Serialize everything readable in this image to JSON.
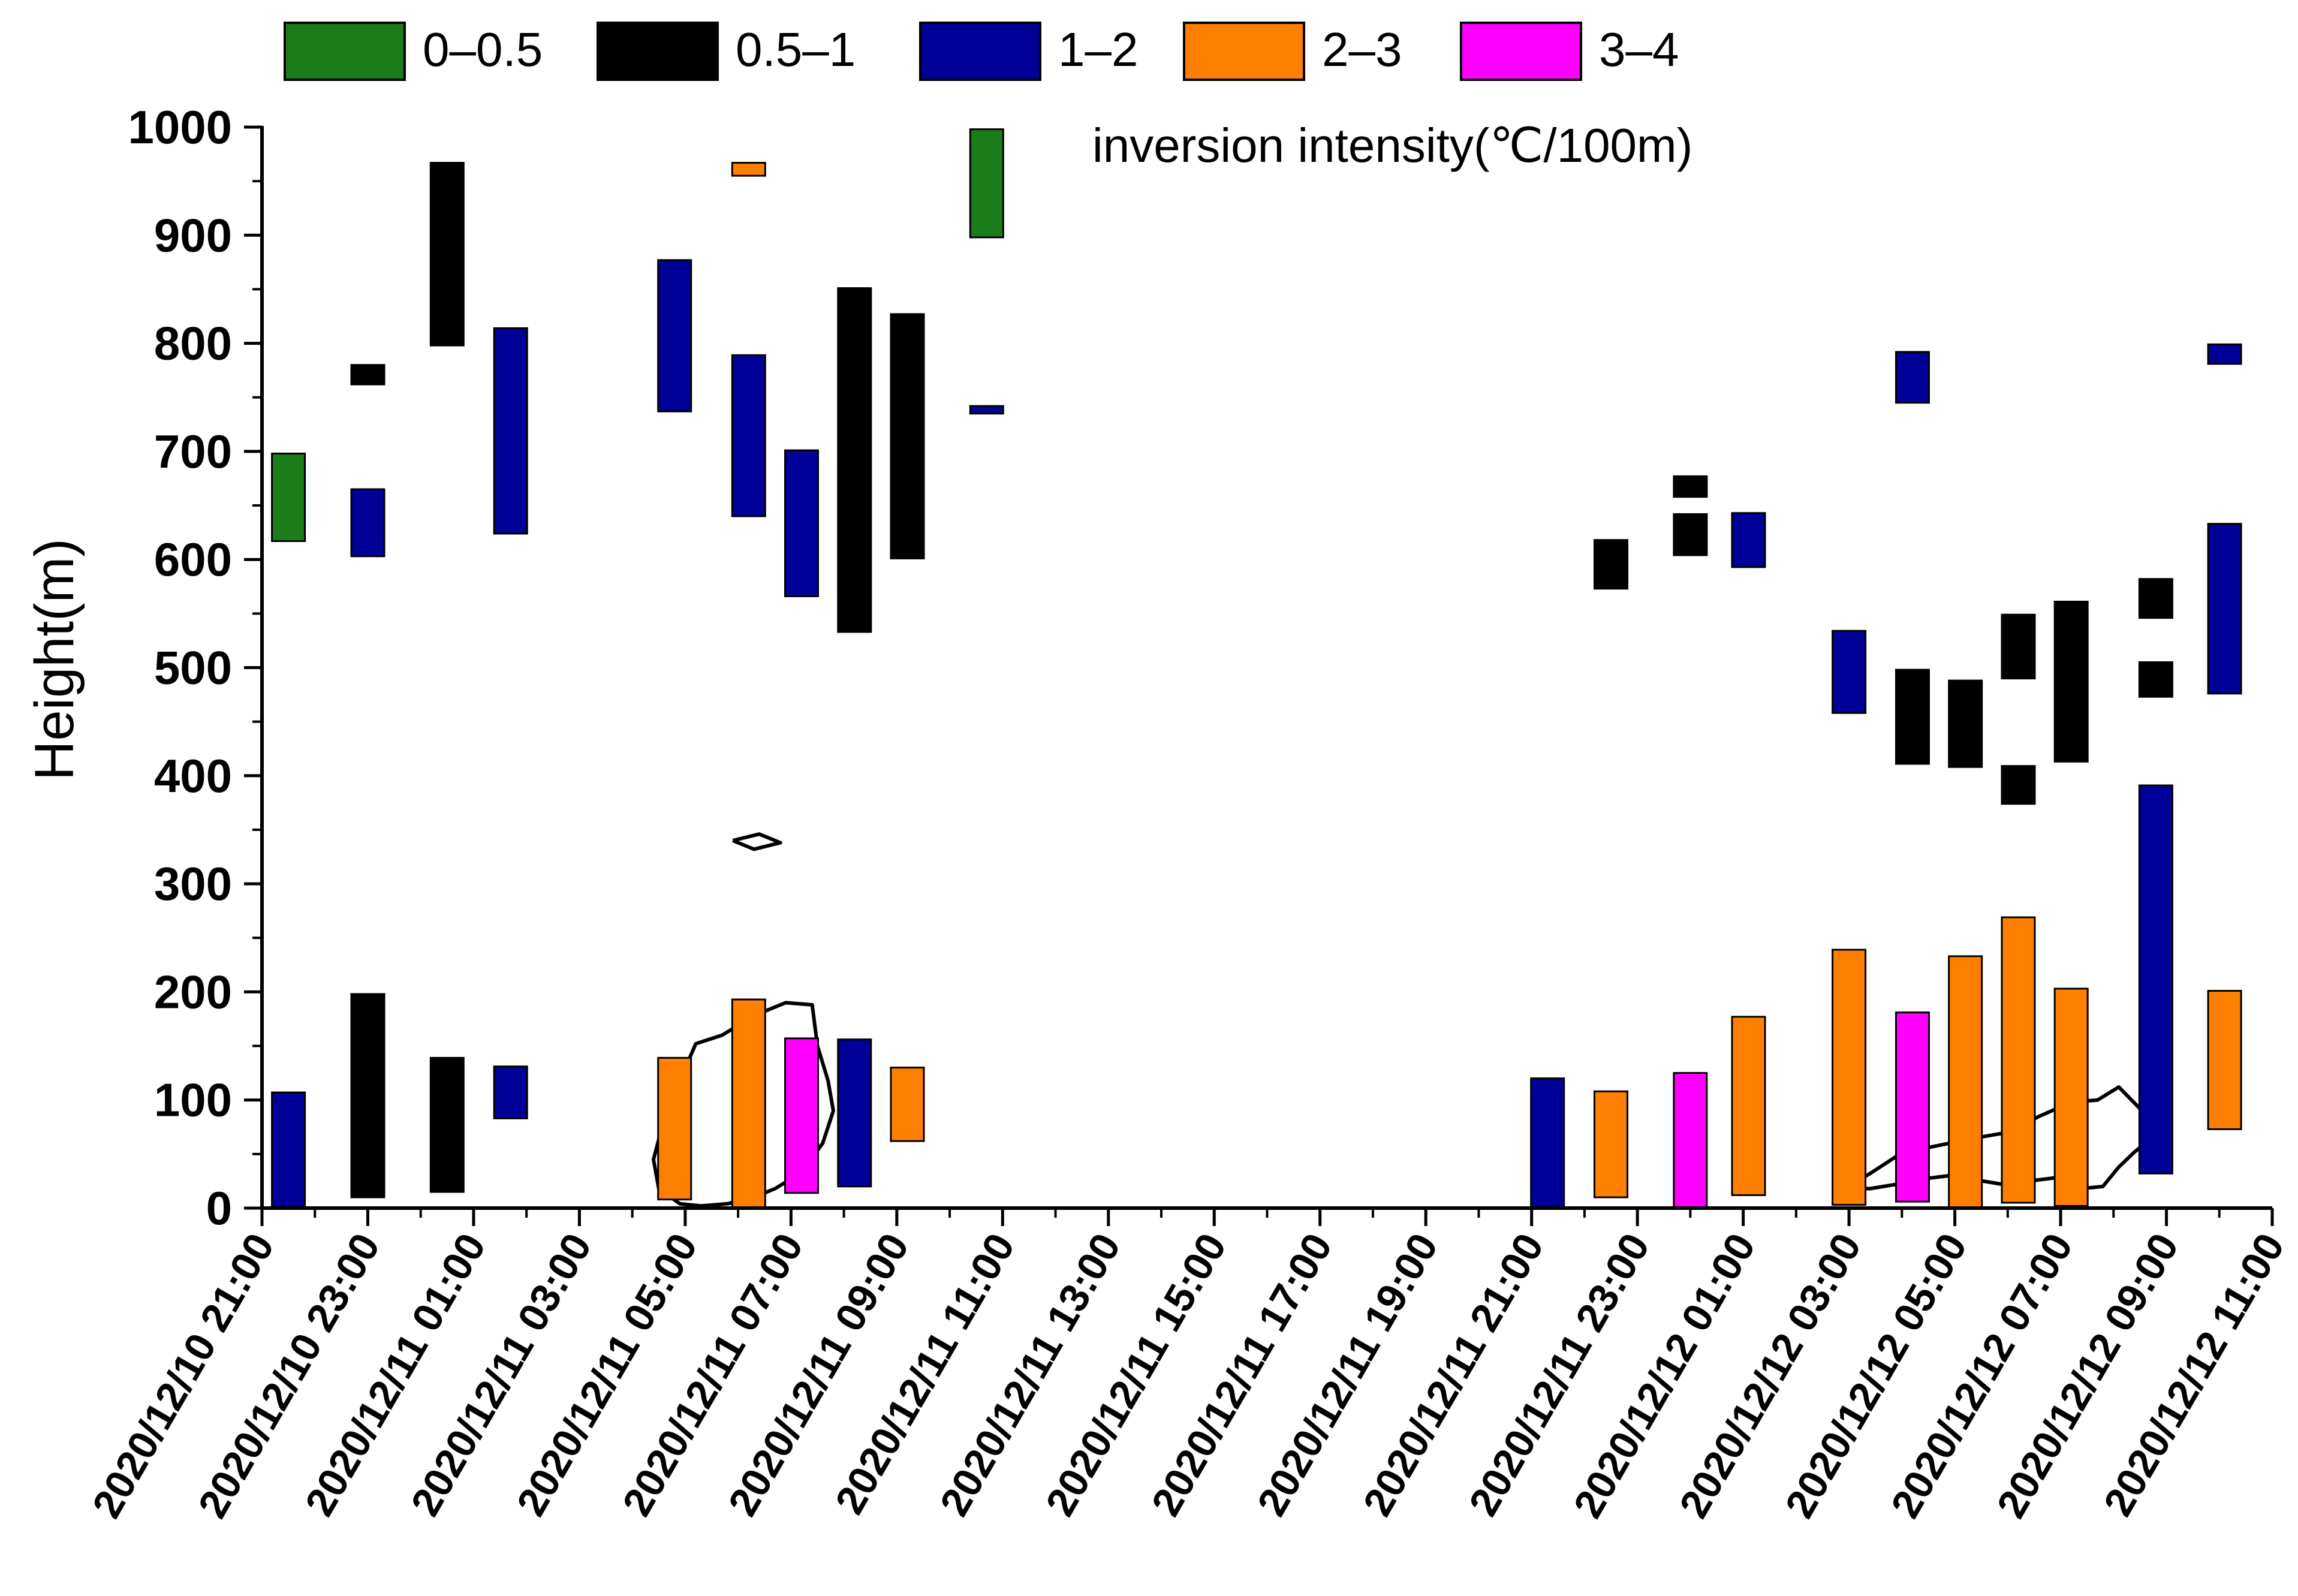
{
  "chart_data": {
    "type": "bar",
    "title": "",
    "xlabel": "",
    "ylabel": "Height(m)",
    "ylim": [
      0,
      1000
    ],
    "yticks": [
      "0",
      "100",
      "200",
      "300",
      "400",
      "500",
      "600",
      "700",
      "800",
      "900",
      "1000"
    ],
    "xlim_hours": [
      0,
      38
    ],
    "xticks": [
      "2020/12/10 21:00",
      "2020/12/10 23:00",
      "2020/12/11 01:00",
      "2020/12/11 03:00",
      "2020/12/11 05:00",
      "2020/12/11 07:00",
      "2020/12/11 09:00",
      "2020/12/11 11:00",
      "2020/12/11 13:00",
      "2020/12/11 15:00",
      "2020/12/11 17:00",
      "2020/12/11 19:00",
      "2020/12/11 21:00",
      "2020/12/11 23:00",
      "2020/12/12 01:00",
      "2020/12/12 03:00",
      "2020/12/12 05:00",
      "2020/12/12 07:00",
      "2020/12/12 09:00",
      "2020/12/12 11:00"
    ],
    "annotation": "inversion intensity(℃/100m)",
    "legend": [
      {
        "key": "g",
        "label": "0–0.5",
        "color": "#1a7d1a"
      },
      {
        "key": "k",
        "label": "0.5–1",
        "color": "#000000"
      },
      {
        "key": "b",
        "label": "1–2",
        "color": "#000099"
      },
      {
        "key": "o",
        "label": "2–3",
        "color": "#ff8000"
      },
      {
        "key": "m",
        "label": "3–4",
        "color": "#ff00ff"
      }
    ],
    "inversion_layers": [
      {
        "hour": 0.5,
        "bottom": 0,
        "top": 107,
        "class": "b"
      },
      {
        "hour": 0.5,
        "bottom": 617,
        "top": 698,
        "class": "g"
      },
      {
        "hour": 2,
        "bottom": 10,
        "top": 198,
        "class": "k"
      },
      {
        "hour": 2,
        "bottom": 603,
        "top": 665,
        "class": "b"
      },
      {
        "hour": 2,
        "bottom": 762,
        "top": 780,
        "class": "k"
      },
      {
        "hour": 3.5,
        "bottom": 15,
        "top": 139,
        "class": "k"
      },
      {
        "hour": 3.5,
        "bottom": 798,
        "top": 967,
        "class": "k"
      },
      {
        "hour": 4.7,
        "bottom": 83,
        "top": 131,
        "class": "b"
      },
      {
        "hour": 4.7,
        "bottom": 624,
        "top": 814,
        "class": "b"
      },
      {
        "hour": 7.8,
        "bottom": 8,
        "top": 139,
        "class": "o"
      },
      {
        "hour": 7.8,
        "bottom": 737,
        "top": 877,
        "class": "b"
      },
      {
        "hour": 9.2,
        "bottom": 0,
        "top": 193,
        "class": "o"
      },
      {
        "hour": 9.2,
        "bottom": 640,
        "top": 789,
        "class": "b"
      },
      {
        "hour": 9.2,
        "bottom": 955,
        "top": 967,
        "class": "o"
      },
      {
        "hour": 10.2,
        "bottom": 14,
        "top": 157,
        "class": "m"
      },
      {
        "hour": 10.2,
        "bottom": 566,
        "top": 701,
        "class": "b"
      },
      {
        "hour": 11.2,
        "bottom": 20,
        "top": 156,
        "class": "b"
      },
      {
        "hour": 11.2,
        "bottom": 533,
        "top": 851,
        "class": "k"
      },
      {
        "hour": 12.2,
        "bottom": 62,
        "top": 130,
        "class": "o"
      },
      {
        "hour": 12.2,
        "bottom": 601,
        "top": 827,
        "class": "k"
      },
      {
        "hour": 13.7,
        "bottom": 735,
        "top": 742,
        "class": "b"
      },
      {
        "hour": 13.7,
        "bottom": 898,
        "top": 998,
        "class": "g"
      },
      {
        "hour": 24.3,
        "bottom": 0,
        "top": 120,
        "class": "b"
      },
      {
        "hour": 25.5,
        "bottom": 10,
        "top": 108,
        "class": "o"
      },
      {
        "hour": 25.5,
        "bottom": 573,
        "top": 618,
        "class": "k"
      },
      {
        "hour": 27,
        "bottom": 0,
        "top": 125,
        "class": "m"
      },
      {
        "hour": 27,
        "bottom": 604,
        "top": 642,
        "class": "k"
      },
      {
        "hour": 27,
        "bottom": 658,
        "top": 677,
        "class": "k"
      },
      {
        "hour": 28.1,
        "bottom": 12,
        "top": 177,
        "class": "o"
      },
      {
        "hour": 28.1,
        "bottom": 593,
        "top": 643,
        "class": "b"
      },
      {
        "hour": 30,
        "bottom": 3,
        "top": 239,
        "class": "o"
      },
      {
        "hour": 30,
        "bottom": 458,
        "top": 534,
        "class": "b"
      },
      {
        "hour": 31.2,
        "bottom": 6,
        "top": 181,
        "class": "m"
      },
      {
        "hour": 31.2,
        "bottom": 411,
        "top": 498,
        "class": "k"
      },
      {
        "hour": 31.2,
        "bottom": 745,
        "top": 792,
        "class": "b"
      },
      {
        "hour": 32.2,
        "bottom": 0,
        "top": 233,
        "class": "o"
      },
      {
        "hour": 32.2,
        "bottom": 408,
        "top": 488,
        "class": "k"
      },
      {
        "hour": 33.2,
        "bottom": 5,
        "top": 269,
        "class": "o"
      },
      {
        "hour": 33.2,
        "bottom": 374,
        "top": 409,
        "class": "k"
      },
      {
        "hour": 33.2,
        "bottom": 490,
        "top": 549,
        "class": "k"
      },
      {
        "hour": 34.2,
        "bottom": 2,
        "top": 203,
        "class": "o"
      },
      {
        "hour": 34.2,
        "bottom": 413,
        "top": 561,
        "class": "k"
      },
      {
        "hour": 35.8,
        "bottom": 32,
        "top": 391,
        "class": "b"
      },
      {
        "hour": 35.8,
        "bottom": 473,
        "top": 505,
        "class": "k"
      },
      {
        "hour": 35.8,
        "bottom": 546,
        "top": 582,
        "class": "k"
      },
      {
        "hour": 37.1,
        "bottom": 73,
        "top": 201,
        "class": "o"
      },
      {
        "hour": 37.1,
        "bottom": 476,
        "top": 633,
        "class": "b"
      },
      {
        "hour": 37.1,
        "bottom": 781,
        "top": 799,
        "class": "b"
      }
    ],
    "contours": [
      {
        "name": "contour-small-loop",
        "points": [
          [
            8.9,
            340
          ],
          [
            9.4,
            346
          ],
          [
            9.8,
            338
          ],
          [
            9.3,
            332
          ],
          [
            8.9,
            340
          ]
        ]
      },
      {
        "name": "contour-morning-12-11",
        "points": [
          [
            7.5,
            18
          ],
          [
            7.4,
            45
          ],
          [
            7.6,
            82
          ],
          [
            7.9,
            118
          ],
          [
            8.2,
            152
          ],
          [
            8.7,
            160
          ],
          [
            9.3,
            178
          ],
          [
            9.9,
            190
          ],
          [
            10.4,
            188
          ],
          [
            10.5,
            150
          ],
          [
            10.7,
            118
          ],
          [
            10.8,
            90
          ],
          [
            10.6,
            60
          ],
          [
            10.3,
            40
          ],
          [
            10.1,
            30
          ],
          [
            9.7,
            18
          ],
          [
            9.3,
            10
          ],
          [
            8.8,
            4
          ],
          [
            8.3,
            2
          ],
          [
            7.9,
            4
          ],
          [
            7.5,
            18
          ]
        ]
      },
      {
        "name": "contour-morning-12-12",
        "points": [
          [
            29.9,
            18
          ],
          [
            30.4,
            32
          ],
          [
            30.9,
            48
          ],
          [
            31.4,
            55
          ],
          [
            31.9,
            60
          ],
          [
            32.4,
            65
          ],
          [
            33.0,
            70
          ],
          [
            33.6,
            85
          ],
          [
            34.2,
            98
          ],
          [
            34.7,
            100
          ],
          [
            35.1,
            112
          ],
          [
            35.5,
            92
          ],
          [
            35.8,
            68
          ],
          [
            35.4,
            52
          ],
          [
            35.1,
            38
          ],
          [
            34.8,
            20
          ],
          [
            34.4,
            18
          ],
          [
            33.9,
            28
          ],
          [
            33.4,
            25
          ],
          [
            32.9,
            22
          ],
          [
            32.4,
            26
          ],
          [
            31.9,
            30
          ],
          [
            31.4,
            27
          ],
          [
            30.9,
            22
          ],
          [
            30.4,
            18
          ],
          [
            29.9,
            18
          ]
        ]
      }
    ]
  }
}
